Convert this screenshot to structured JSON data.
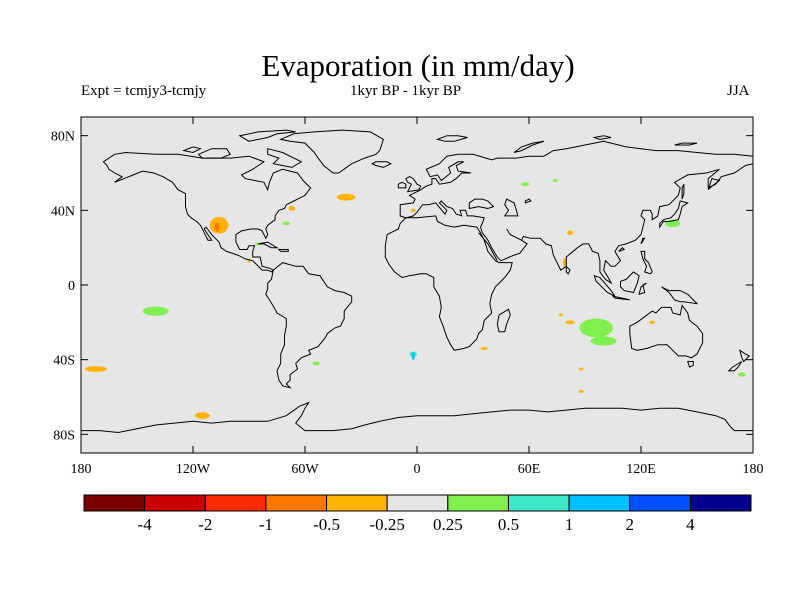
{
  "header": {
    "title": "Evaporation (in mm/day)",
    "left_subtitle": "Expt = tcmjy3-tcmjy",
    "center_subtitle": "1kyr BP - 1kyr BP",
    "right_subtitle": "JJA"
  },
  "map": {
    "projection": "equirectangular",
    "lon_range": [
      -180,
      180
    ],
    "lat_range": [
      -90,
      90
    ],
    "ocean_color": "#e6e6e6",
    "x_ticks": [
      {
        "lon": -180,
        "label": "180"
      },
      {
        "lon": -120,
        "label": "120W"
      },
      {
        "lon": -60,
        "label": "60W"
      },
      {
        "lon": 0,
        "label": "0"
      },
      {
        "lon": 60,
        "label": "60E"
      },
      {
        "lon": 120,
        "label": "120E"
      },
      {
        "lon": 180,
        "label": "180"
      }
    ],
    "y_ticks": [
      {
        "lat": 80,
        "label": "80N"
      },
      {
        "lat": 40,
        "label": "40N"
      },
      {
        "lat": 0,
        "label": "0"
      },
      {
        "lat": -40,
        "label": "40S"
      },
      {
        "lat": -80,
        "label": "80S"
      }
    ],
    "anomaly_patches": [
      {
        "lon": -106,
        "lat": 32,
        "rlon": 5,
        "rlat": 4.5,
        "color": "#ffb300"
      },
      {
        "lon": -107,
        "lat": 31,
        "rlon": 1.3,
        "rlat": 2.5,
        "color": "#ff7800"
      },
      {
        "lon": -38,
        "lat": 47,
        "rlon": 5,
        "rlat": 1.8,
        "color": "#ffb300"
      },
      {
        "lon": -67,
        "lat": 41,
        "rlon": 1.8,
        "rlat": 1.3,
        "color": "#ffb300"
      },
      {
        "lon": -70,
        "lat": 33,
        "rlon": 2,
        "rlat": 1,
        "color": "#7ff050"
      },
      {
        "lon": -85,
        "lat": 22,
        "rlon": 1.8,
        "rlat": 0.8,
        "color": "#7ff050"
      },
      {
        "lon": -90,
        "lat": 13,
        "rlon": 0.8,
        "rlat": 1,
        "color": "#ffb300"
      },
      {
        "lon": -140,
        "lat": -14,
        "rlon": 7,
        "rlat": 2.5,
        "color": "#7ff050"
      },
      {
        "lon": -172,
        "lat": -45,
        "rlon": 6,
        "rlat": 1.5,
        "color": "#ffb300"
      },
      {
        "lon": -115,
        "lat": -70,
        "rlon": 4,
        "rlat": 1.8,
        "color": "#ffb300"
      },
      {
        "lon": -54,
        "lat": -42,
        "rlon": 2,
        "rlat": 1,
        "color": "#7ff050"
      },
      {
        "lon": -2,
        "lat": -37,
        "rlon": 2,
        "rlat": 1.4,
        "color": "#3ce8c8"
      },
      {
        "lon": -2,
        "lat": -38,
        "rlon": 0.8,
        "rlat": 2.2,
        "color": "#00bfff"
      },
      {
        "lon": 36,
        "lat": -34,
        "rlon": 2,
        "rlat": 0.8,
        "color": "#ffb300"
      },
      {
        "lon": 58,
        "lat": 54,
        "rlon": 2.2,
        "rlat": 1,
        "color": "#7ff050"
      },
      {
        "lon": 74,
        "lat": 56,
        "rlon": 1.3,
        "rlat": 0.8,
        "color": "#7ff050"
      },
      {
        "lon": -2,
        "lat": 40,
        "rlon": 1.4,
        "rlat": 0.8,
        "color": "#ffb300"
      },
      {
        "lon": 82,
        "lat": 28,
        "rlon": 1.6,
        "rlat": 1.2,
        "color": "#ffb300"
      },
      {
        "lon": 79,
        "lat": 12,
        "rlon": 0.7,
        "rlat": 2.6,
        "color": "#ffb300"
      },
      {
        "lon": 137,
        "lat": 33,
        "rlon": 4,
        "rlat": 2,
        "color": "#7ff050"
      },
      {
        "lon": 96,
        "lat": -23,
        "rlon": 9,
        "rlat": 5,
        "color": "#7ff050"
      },
      {
        "lon": 100,
        "lat": -30,
        "rlon": 7,
        "rlat": 2.5,
        "color": "#7ff050"
      },
      {
        "lon": 82,
        "lat": -20,
        "rlon": 2.5,
        "rlat": 1,
        "color": "#ffb300"
      },
      {
        "lon": 88,
        "lat": -45,
        "rlon": 1.2,
        "rlat": 0.8,
        "color": "#ffb300"
      },
      {
        "lon": 88,
        "lat": -57,
        "rlon": 1.4,
        "rlat": 0.8,
        "color": "#ffb300"
      },
      {
        "lon": 174,
        "lat": -48,
        "rlon": 2,
        "rlat": 1.2,
        "color": "#7ff050"
      },
      {
        "lon": 126,
        "lat": -20,
        "rlon": 1.5,
        "rlat": 0.9,
        "color": "#ffb300"
      },
      {
        "lon": 77,
        "lat": -16,
        "rlon": 1,
        "rlat": 0.8,
        "color": "#ffb300"
      }
    ]
  },
  "colorbar": {
    "colors": [
      "#7a0000",
      "#cc0000",
      "#ff2a00",
      "#ff7800",
      "#ffb300",
      "#e6e6e6",
      "#7ff050",
      "#3ce8c8",
      "#00bfff",
      "#0050ff",
      "#00008c"
    ],
    "labels": [
      "-4",
      "-2",
      "-1",
      "-0.5",
      "-0.25",
      "0.25",
      "0.5",
      "1",
      "2",
      "4"
    ]
  }
}
